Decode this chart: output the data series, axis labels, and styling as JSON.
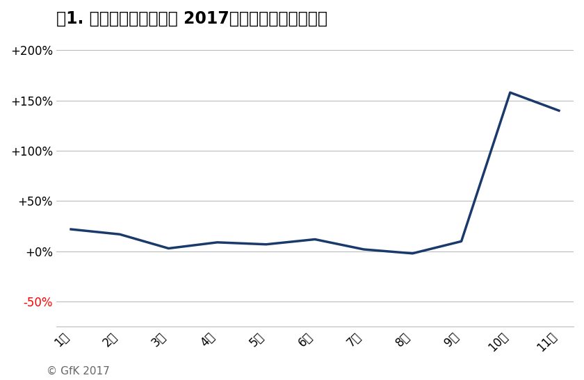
{
  "title": "図1. ドライブレコーダー 2017年販売台数前年同月比",
  "months": [
    "1月",
    "2月",
    "3月",
    "4月",
    "5月",
    "6月",
    "7月",
    "8月",
    "9月",
    "10月",
    "11月"
  ],
  "values": [
    22,
    17,
    3,
    9,
    7,
    12,
    2,
    -2,
    10,
    158,
    140
  ],
  "line_color": "#1a3a6b",
  "line_width": 2.5,
  "yticks": [
    -50,
    0,
    50,
    100,
    150,
    200
  ],
  "ylim": [
    -75,
    215
  ],
  "background_color": "#ffffff",
  "grid_color": "#bbbbbb",
  "title_fontsize": 17,
  "tick_fontsize": 12,
  "copyright_text": "© GfK 2017",
  "minus50_color": "#ff0000",
  "ytick_labels": [
    "-50%",
    "+0%",
    "+50%",
    "+100%",
    "+150%",
    "+200%"
  ]
}
